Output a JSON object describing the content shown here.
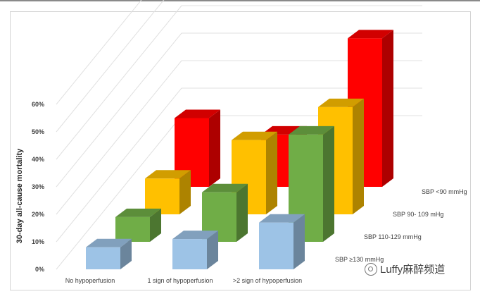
{
  "chart_data": {
    "type": "bar",
    "subtype": "3d-clustered-bar",
    "ylabel": "30-day all-cause mortality",
    "yticks": [
      "0%",
      "10%",
      "20%",
      "30%",
      "40%",
      "50%",
      "60%"
    ],
    "ylim": [
      0,
      60
    ],
    "categories": [
      "No hypoperfusion",
      "1 sign of hypoperfusion",
      ">2 sign of hypoperfusion"
    ],
    "series": [
      {
        "name": "SBP ≥130 mmHg",
        "color": "#9dc3e6",
        "values": [
          8,
          11,
          17
        ]
      },
      {
        "name": "SBP  110-129 mmHg",
        "color": "#70ad47",
        "values": [
          9,
          18,
          39
        ]
      },
      {
        "name": "SBP 90- 109 mHg",
        "color": "#ffc000",
        "values": [
          13,
          27,
          39
        ]
      },
      {
        "name": "SBP <90 mmHg",
        "color": "#ff0000",
        "values": [
          25,
          19,
          54
        ]
      }
    ],
    "legend": "series labels on depth axis (right)",
    "grid": true
  },
  "watermark": {
    "text": "Luffy麻醉频道",
    "icon": "wechat-icon"
  }
}
